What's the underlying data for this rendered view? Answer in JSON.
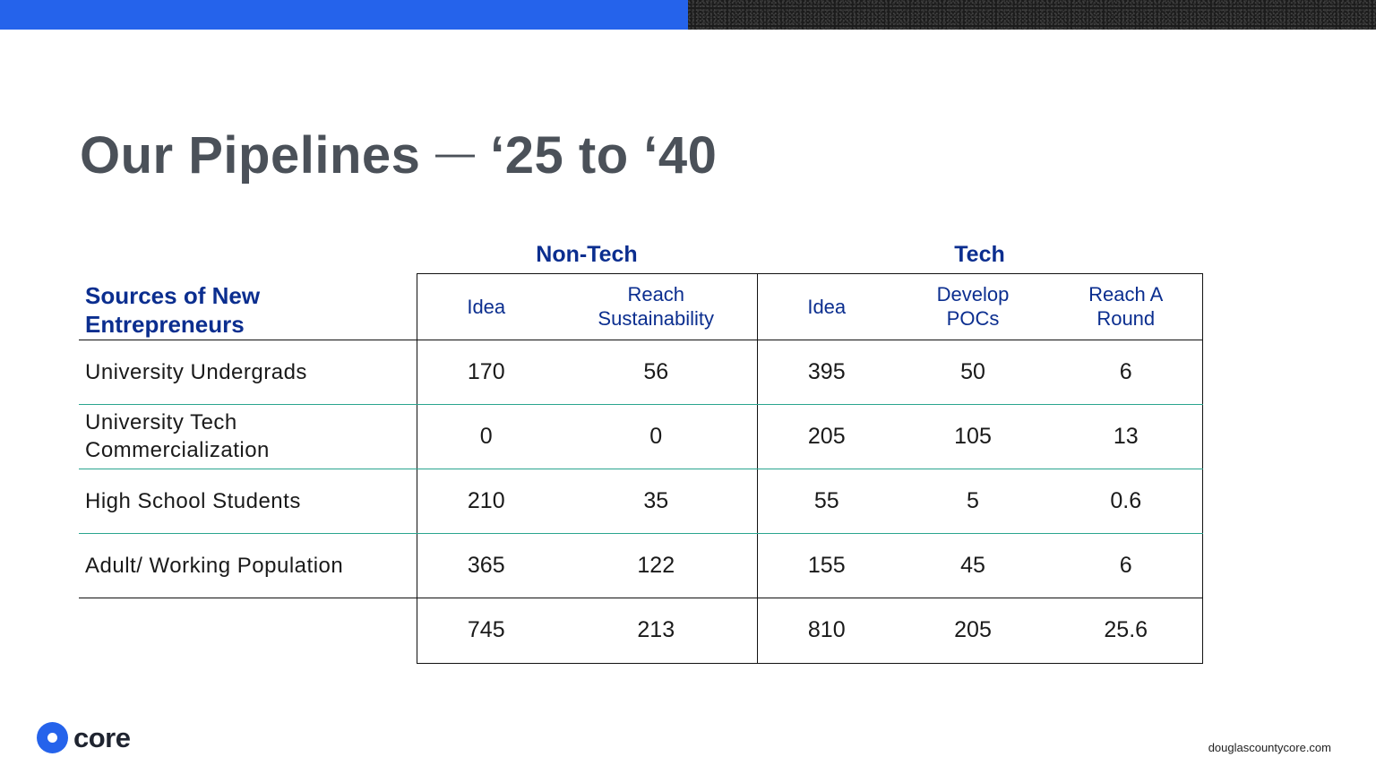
{
  "slide": {
    "title_main": "Our Pipelines",
    "title_dash": "—",
    "title_range": "‘25 to ‘40"
  },
  "groups": {
    "non_tech": "Non-Tech",
    "tech": "Tech"
  },
  "table": {
    "source_header_line1": "Sources of New",
    "source_header_line2": "Entrepreneurs",
    "columns": [
      {
        "line1": "Idea",
        "line2": ""
      },
      {
        "line1": "Reach",
        "line2": "Sustainability"
      },
      {
        "line1": "Idea",
        "line2": ""
      },
      {
        "line1": "Develop",
        "line2": "POCs"
      },
      {
        "line1": "Reach A",
        "line2": "Round"
      }
    ],
    "rows": [
      {
        "label_line1": "University Undergrads",
        "label_line2": "",
        "values": [
          "170",
          "56",
          "395",
          "50",
          "6"
        ]
      },
      {
        "label_line1": "University Tech",
        "label_line2": "Commercialization",
        "values": [
          "0",
          "0",
          "205",
          "105",
          "13"
        ]
      },
      {
        "label_line1": "High School Students",
        "label_line2": "",
        "values": [
          "210",
          "35",
          "55",
          "5",
          "0.6"
        ]
      },
      {
        "label_line1": "Adult/ Working Population",
        "label_line2": "",
        "values": [
          "365",
          "122",
          "155",
          "45",
          "6"
        ]
      }
    ],
    "totals": [
      "745",
      "213",
      "810",
      "205",
      "25.6"
    ]
  },
  "footer": {
    "logo_text": "core",
    "website": "douglascountycore.com"
  },
  "colors": {
    "accent_blue": "#2563eb",
    "header_navy": "#0b2e8f",
    "title_gray": "#4b5159",
    "row_divider_teal": "#2aa58f"
  }
}
